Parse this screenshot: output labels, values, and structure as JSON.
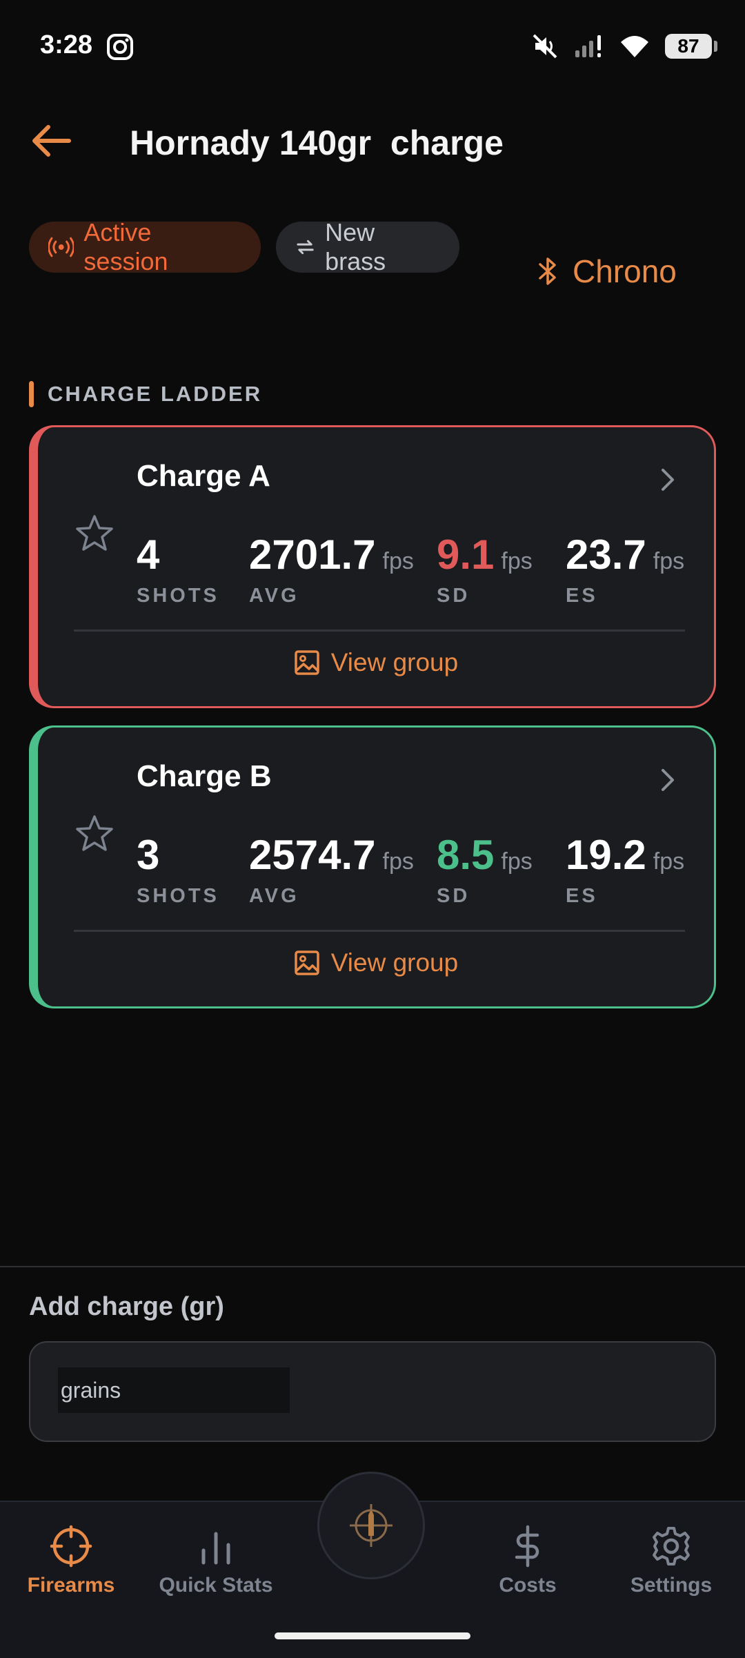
{
  "status_bar": {
    "time": "3:28",
    "battery": "87"
  },
  "header": {
    "title": "Hornady 140gr  charge"
  },
  "chips": {
    "active_session": "Active session",
    "new_brass": "New brass"
  },
  "chrono": {
    "label": "Chrono"
  },
  "section": {
    "title": "CHARGE LADDER"
  },
  "charges": [
    {
      "name": "Charge A",
      "shots": "4",
      "shots_label": "SHOTS",
      "avg": "2701.7",
      "avg_label": "AVG",
      "sd": "9.1",
      "sd_label": "SD",
      "es": "23.7",
      "es_label": "ES",
      "unit": "fps",
      "view_label": "View group",
      "accent": "#e05a5a"
    },
    {
      "name": "Charge B",
      "shots": "3",
      "shots_label": "SHOTS",
      "avg": "2574.7",
      "avg_label": "AVG",
      "sd": "8.5",
      "sd_label": "SD",
      "es": "19.2",
      "es_label": "ES",
      "unit": "fps",
      "view_label": "View group",
      "accent": "#4cc08a"
    }
  ],
  "add_charge": {
    "label": "Add charge (gr)",
    "placeholder": "grains",
    "value": ""
  },
  "nav": {
    "items": [
      {
        "label": "Firearms",
        "icon": "crosshair-icon",
        "active": true
      },
      {
        "label": "Quick Stats",
        "icon": "bar-chart-icon",
        "active": false
      },
      {
        "label": "Costs",
        "icon": "dollar-icon",
        "active": false
      },
      {
        "label": "Settings",
        "icon": "gear-icon",
        "active": false
      }
    ]
  },
  "colors": {
    "accent": "#e88a48",
    "background": "#0b0b0c",
    "card": "#1b1c1f",
    "sd_high": "#e05a5a",
    "sd_low": "#4cc08a"
  }
}
